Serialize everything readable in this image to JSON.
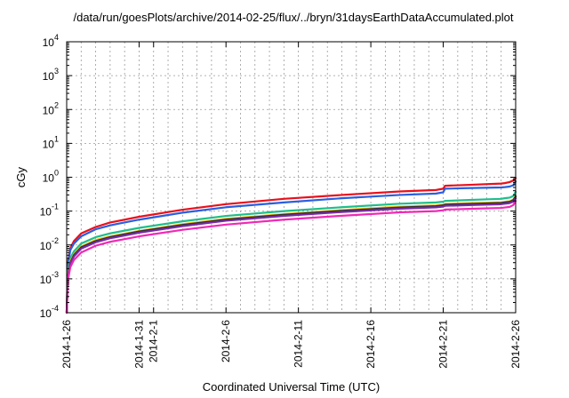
{
  "chart_data": {
    "type": "line",
    "title": "/data/run/goesPlots/archive/2014-02-25/flux/../bryn/31daysEarthDataAccumulated.plot",
    "xlabel": "Coordinated Universal Time (UTC)",
    "ylabel": "cGy",
    "y_scale": "log",
    "ylim": [
      0.0001,
      10000
    ],
    "y_ticks": [
      {
        "value": 0.0001,
        "mantissa": "10",
        "exp": "-4"
      },
      {
        "value": 0.001,
        "mantissa": "10",
        "exp": "-3"
      },
      {
        "value": 0.01,
        "mantissa": "10",
        "exp": "-2"
      },
      {
        "value": 0.1,
        "mantissa": "10",
        "exp": "-1"
      },
      {
        "value": 1,
        "mantissa": "10",
        "exp": "0"
      },
      {
        "value": 10,
        "mantissa": "10",
        "exp": "1"
      },
      {
        "value": 100,
        "mantissa": "10",
        "exp": "2"
      },
      {
        "value": 1000,
        "mantissa": "10",
        "exp": "3"
      },
      {
        "value": 10000,
        "mantissa": "10",
        "exp": "4"
      }
    ],
    "xlim": [
      "2014-01-26",
      "2014-02-26"
    ],
    "x_ticks": [
      {
        "date": "2014-01-26",
        "label": "2014-1-26"
      },
      {
        "date": "2014-01-31",
        "label": "2014-1-31"
      },
      {
        "date": "2014-02-01",
        "label": "2014-2-1"
      },
      {
        "date": "2014-02-06",
        "label": "2014-2-6"
      },
      {
        "date": "2014-02-11",
        "label": "2014-2-11"
      },
      {
        "date": "2014-02-16",
        "label": "2014-2-16"
      },
      {
        "date": "2014-02-21",
        "label": "2014-2-21"
      },
      {
        "date": "2014-02-26",
        "label": "2014-2-26"
      }
    ],
    "grid": true,
    "legend": "none",
    "x": [
      "2014-01-26",
      "2014-01-26T02:00",
      "2014-01-26T06:00",
      "2014-01-26T12:00",
      "2014-01-27",
      "2014-01-28",
      "2014-01-29",
      "2014-01-31",
      "2014-02-03",
      "2014-02-06",
      "2014-02-10",
      "2014-02-14",
      "2014-02-18",
      "2014-02-20T12:00",
      "2014-02-21",
      "2014-02-21T03:00",
      "2014-02-23",
      "2014-02-25",
      "2014-02-25T06:00",
      "2014-02-25T14:00",
      "2014-02-25T20:00",
      "2014-02-26"
    ],
    "series": [
      {
        "color": "#e8101c",
        "values": [
          0.0001,
          0.003,
          0.008,
          0.013,
          0.022,
          0.034,
          0.046,
          0.068,
          0.11,
          0.16,
          0.23,
          0.3,
          0.38,
          0.42,
          0.46,
          0.56,
          0.6,
          0.65,
          0.67,
          0.72,
          0.8,
          0.95
        ]
      },
      {
        "color": "#2a5fe0",
        "values": [
          0.0001,
          0.0025,
          0.007,
          0.011,
          0.018,
          0.029,
          0.038,
          0.056,
          0.09,
          0.13,
          0.18,
          0.24,
          0.3,
          0.33,
          0.36,
          0.46,
          0.48,
          0.5,
          0.51,
          0.53,
          0.58,
          0.75
        ]
      },
      {
        "color": "#1ebe8c",
        "values": [
          0.0001,
          0.0016,
          0.004,
          0.0065,
          0.011,
          0.017,
          0.022,
          0.032,
          0.05,
          0.072,
          0.1,
          0.13,
          0.165,
          0.18,
          0.19,
          0.2,
          0.215,
          0.23,
          0.24,
          0.25,
          0.28,
          0.37
        ]
      },
      {
        "color": "#f0c000",
        "values": [
          0.0001,
          0.0013,
          0.0033,
          0.0053,
          0.009,
          0.014,
          0.018,
          0.026,
          0.041,
          0.059,
          0.082,
          0.107,
          0.135,
          0.147,
          0.155,
          0.163,
          0.172,
          0.182,
          0.188,
          0.196,
          0.22,
          0.28
        ]
      },
      {
        "color": "#303038",
        "values": [
          0.0001,
          0.0012,
          0.003,
          0.005,
          0.0085,
          0.013,
          0.017,
          0.025,
          0.039,
          0.056,
          0.078,
          0.102,
          0.128,
          0.14,
          0.148,
          0.155,
          0.164,
          0.174,
          0.18,
          0.187,
          0.21,
          0.27
        ]
      },
      {
        "color": "#7a2aa8",
        "values": [
          0.0001,
          0.0011,
          0.0028,
          0.0046,
          0.0078,
          0.012,
          0.0158,
          0.023,
          0.036,
          0.052,
          0.072,
          0.094,
          0.118,
          0.129,
          0.136,
          0.143,
          0.151,
          0.16,
          0.165,
          0.172,
          0.19,
          0.24
        ]
      },
      {
        "color": "#f02ab4",
        "values": [
          0.0001,
          0.0009,
          0.0022,
          0.0036,
          0.006,
          0.0095,
          0.0124,
          0.018,
          0.028,
          0.04,
          0.056,
          0.073,
          0.092,
          0.1,
          0.106,
          0.111,
          0.117,
          0.124,
          0.128,
          0.133,
          0.15,
          0.2
        ]
      }
    ]
  }
}
